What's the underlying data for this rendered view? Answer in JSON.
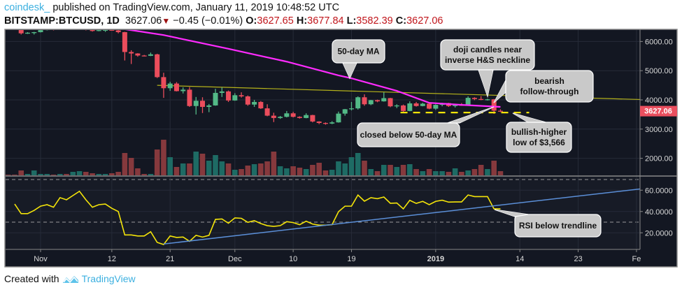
{
  "header": {
    "publisher": "coindesk_",
    "published_text": " published on TradingView.com, January 11, 2019 10:48:52 UTC",
    "symbol": "BITSTAMP:BTCUSD, 1D",
    "last": "3627.06",
    "change_icon": "triangle-down-icon",
    "change": "−0.45 (−0.01%)",
    "o_label": "O:",
    "o": "3627.65",
    "h_label": "H:",
    "h": "3677.84",
    "l_label": "L:",
    "l": "3582.39",
    "c_label": "C:",
    "c": "3627.06"
  },
  "colors": {
    "background": "#131722",
    "grid": "#262b38",
    "up": "#53b987",
    "down": "#eb4d5c",
    "vol_up": "#1e6b64",
    "vol_down": "#86393d",
    "ma": "#ff2bff",
    "neckline": "#b5b21a",
    "support": "#f4e409",
    "rsi": "#f4e409",
    "rsi_trend": "#5b8fd8",
    "price_tag": "#ea4f5f",
    "callout": "#c9c9c9",
    "brand": "#3cb0e0"
  },
  "price_axis": {
    "labels": [
      "6000.00",
      "5000.00",
      "4000.00",
      "3000.00",
      "2000.00"
    ],
    "values": [
      6000,
      5000,
      4000,
      3000,
      2000
    ],
    "last_price_tag": "3627.06",
    "last_price": 3627.06
  },
  "rsi_axis": {
    "labels": [
      "60.0000",
      "40.0000",
      "20.0000"
    ],
    "values": [
      60,
      40,
      20
    ],
    "bands": [
      70,
      30
    ]
  },
  "time_axis": [
    {
      "label": "Nov",
      "date": "2018-11-01"
    },
    {
      "label": "12",
      "date": "2018-11-12"
    },
    {
      "label": "21",
      "date": "2018-11-21"
    },
    {
      "label": "Dec",
      "date": "2018-12-01"
    },
    {
      "label": "10",
      "date": "2018-12-10"
    },
    {
      "label": "19",
      "date": "2018-12-19"
    },
    {
      "label": "2019",
      "date": "2019-01-01",
      "bold": true
    },
    {
      "label": "14",
      "date": "2019-01-14"
    },
    {
      "label": "23",
      "date": "2019-01-23"
    },
    {
      "label": "Fe",
      "date": "2019-02-01"
    }
  ],
  "chart_data": {
    "type": "candlestick",
    "symbol": "BITSTAMP:BTCUSD",
    "interval": "1D",
    "ylim": [
      1450,
      6370
    ],
    "candles_columns": [
      "date",
      "open",
      "high",
      "low",
      "close"
    ],
    "candles": [
      [
        "2018-10-27",
        6480,
        6490,
        6450,
        6470
      ],
      [
        "2018-10-28",
        6470,
        6480,
        6440,
        6460
      ],
      [
        "2018-10-29",
        6400,
        6420,
        6240,
        6280
      ],
      [
        "2018-10-30",
        6280,
        6320,
        6260,
        6300
      ],
      [
        "2018-10-31",
        6300,
        6330,
        6240,
        6320
      ],
      [
        "2018-11-01",
        6320,
        6400,
        6310,
        6390
      ],
      [
        "2018-11-02",
        6390,
        6470,
        6380,
        6440
      ],
      [
        "2018-11-03",
        6440,
        6450,
        6380,
        6410
      ],
      [
        "2018-11-04",
        6410,
        6480,
        6400,
        6460
      ],
      [
        "2018-11-05",
        6460,
        6480,
        6420,
        6430
      ],
      [
        "2018-11-06",
        6430,
        6500,
        6420,
        6470
      ],
      [
        "2018-11-07",
        6470,
        6560,
        6460,
        6530
      ],
      [
        "2018-11-08",
        6530,
        6540,
        6380,
        6400
      ],
      [
        "2018-11-09",
        6400,
        6430,
        6340,
        6360
      ],
      [
        "2018-11-10",
        6360,
        6400,
        6350,
        6390
      ],
      [
        "2018-11-11",
        6390,
        6420,
        6330,
        6400
      ],
      [
        "2018-11-12",
        6400,
        6440,
        6370,
        6380
      ],
      [
        "2018-11-13",
        6380,
        6400,
        6280,
        6320
      ],
      [
        "2018-11-14",
        6320,
        6330,
        5350,
        5640
      ],
      [
        "2018-11-15",
        5640,
        5700,
        5230,
        5590
      ],
      [
        "2018-11-16",
        5590,
        5600,
        5480,
        5520
      ],
      [
        "2018-11-17",
        5520,
        5540,
        5490,
        5510
      ],
      [
        "2018-11-18",
        5510,
        5620,
        5500,
        5560
      ],
      [
        "2018-11-19",
        5560,
        5580,
        4750,
        4780
      ],
      [
        "2018-11-20",
        4780,
        4930,
        4070,
        4400
      ],
      [
        "2018-11-21",
        4400,
        4620,
        4310,
        4560
      ],
      [
        "2018-11-22",
        4560,
        4610,
        4290,
        4300
      ],
      [
        "2018-11-23",
        4300,
        4430,
        4220,
        4350
      ],
      [
        "2018-11-24",
        4350,
        4440,
        3760,
        3790
      ],
      [
        "2018-11-25",
        3790,
        4100,
        3500,
        3970
      ],
      [
        "2018-11-26",
        3970,
        4090,
        3550,
        3760
      ],
      [
        "2018-11-27",
        3760,
        3860,
        3580,
        3810
      ],
      [
        "2018-11-28",
        3810,
        4380,
        3800,
        4240
      ],
      [
        "2018-11-29",
        4240,
        4430,
        4100,
        4290
      ],
      [
        "2018-11-30",
        4290,
        4320,
        3930,
        3980
      ],
      [
        "2018-12-01",
        3980,
        4230,
        3970,
        4160
      ],
      [
        "2018-12-02",
        4160,
        4260,
        4080,
        4120
      ],
      [
        "2018-12-03",
        4120,
        4150,
        3800,
        3840
      ],
      [
        "2018-12-04",
        3840,
        4000,
        3760,
        3930
      ],
      [
        "2018-12-05",
        3930,
        3960,
        3690,
        3710
      ],
      [
        "2018-12-06",
        3710,
        3850,
        3440,
        3460
      ],
      [
        "2018-12-07",
        3460,
        3560,
        3240,
        3380
      ],
      [
        "2018-12-08",
        3380,
        3450,
        3350,
        3420
      ],
      [
        "2018-12-09",
        3420,
        3620,
        3400,
        3540
      ],
      [
        "2018-12-10",
        3540,
        3590,
        3400,
        3420
      ],
      [
        "2018-12-11",
        3420,
        3440,
        3360,
        3380
      ],
      [
        "2018-12-12",
        3380,
        3540,
        3370,
        3480
      ],
      [
        "2018-12-13",
        3480,
        3490,
        3230,
        3260
      ],
      [
        "2018-12-14",
        3260,
        3270,
        3170,
        3210
      ],
      [
        "2018-12-15",
        3210,
        3230,
        3150,
        3190
      ],
      [
        "2018-12-16",
        3190,
        3270,
        3170,
        3230
      ],
      [
        "2018-12-17",
        3230,
        3600,
        3220,
        3530
      ],
      [
        "2018-12-18",
        3530,
        3690,
        3460,
        3680
      ],
      [
        "2018-12-19",
        3680,
        3930,
        3640,
        3710
      ],
      [
        "2018-12-20",
        3710,
        4120,
        3670,
        4090
      ],
      [
        "2018-12-21",
        4090,
        4190,
        3800,
        3850
      ],
      [
        "2018-12-22",
        3850,
        4000,
        3820,
        3990
      ],
      [
        "2018-12-23",
        3990,
        4010,
        3920,
        3950
      ],
      [
        "2018-12-24",
        3950,
        4260,
        3940,
        4060
      ],
      [
        "2018-12-25",
        4060,
        4070,
        3750,
        3780
      ],
      [
        "2018-12-26",
        3780,
        3850,
        3720,
        3810
      ],
      [
        "2018-12-27",
        3810,
        3840,
        3590,
        3620
      ],
      [
        "2018-12-28",
        3620,
        3950,
        3610,
        3880
      ],
      [
        "2018-12-29",
        3880,
        3930,
        3770,
        3790
      ],
      [
        "2018-12-30",
        3790,
        3900,
        3780,
        3870
      ],
      [
        "2018-12-31",
        3870,
        3880,
        3680,
        3700
      ],
      [
        "2019-01-01",
        3700,
        3850,
        3660,
        3830
      ],
      [
        "2019-01-02",
        3830,
        3900,
        3780,
        3890
      ],
      [
        "2019-01-03",
        3890,
        3900,
        3760,
        3790
      ],
      [
        "2019-01-04",
        3790,
        3850,
        3740,
        3830
      ],
      [
        "2019-01-05",
        3830,
        3890,
        3800,
        3820
      ],
      [
        "2019-01-06",
        3820,
        4120,
        3800,
        4070
      ],
      [
        "2019-01-07",
        4070,
        4090,
        3990,
        4030
      ],
      [
        "2019-01-08",
        4030,
        4130,
        3990,
        4010
      ],
      [
        "2019-01-09",
        4010,
        4040,
        3980,
        4020
      ],
      [
        "2019-01-10",
        4020,
        4030,
        3520,
        3630
      ],
      [
        "2019-01-11",
        3627.65,
        3677.84,
        3582.39,
        3627.06
      ]
    ],
    "volume_relative": [
      1,
      1,
      7,
      2,
      7,
      2,
      2,
      1,
      2,
      2,
      5,
      6,
      5,
      3,
      2,
      2,
      3,
      5,
      32,
      25,
      10,
      2,
      2,
      37,
      51,
      26,
      12,
      17,
      17,
      34,
      31,
      21,
      29,
      20,
      17,
      8,
      9,
      14,
      16,
      17,
      20,
      34,
      13,
      10,
      13,
      11,
      9,
      15,
      18,
      7,
      8,
      20,
      17,
      26,
      32,
      21,
      9,
      6,
      15,
      15,
      12,
      15,
      16,
      9,
      6,
      9,
      6,
      6,
      5,
      10,
      5,
      7,
      9,
      15,
      9,
      21,
      6
    ],
    "ma_50": {
      "label_callout": "50-day MA",
      "points": [
        [
          "2018-11-13",
          6450
        ],
        [
          "2018-11-15",
          6390
        ],
        [
          "2018-11-20",
          6220
        ],
        [
          "2018-11-30",
          5750
        ],
        [
          "2018-12-09",
          5310
        ],
        [
          "2018-12-17",
          4840
        ],
        [
          "2018-12-19",
          4740
        ],
        [
          "2018-12-26",
          4310
        ],
        [
          "2018-12-31",
          3900
        ],
        [
          "2019-01-05",
          3830
        ],
        [
          "2019-01-11",
          3760
        ]
      ]
    },
    "neckline": [
      [
        "2018-11-19",
        4500
      ],
      [
        "2019-02-02",
        4010
      ]
    ],
    "support_level": {
      "value": 3566,
      "from": "2018-12-27",
      "to": "2019-01-15"
    },
    "rsi": {
      "start": "2018-10-28",
      "values": [
        47,
        38,
        38,
        41,
        45,
        46.4,
        44,
        53,
        51,
        55,
        59,
        51,
        44,
        46.4,
        47,
        43,
        40,
        18,
        18,
        17,
        17,
        21,
        11,
        9,
        17,
        15.6,
        16,
        12,
        17.6,
        16,
        17.6,
        32.6,
        33,
        29,
        34,
        33.6,
        29.8,
        31.4,
        28.7,
        26.7,
        26,
        26.7,
        30.4,
        29.6,
        27.6,
        30.9,
        28.2,
        27.2,
        27.2,
        27.6,
        39.8,
        45,
        45,
        55.5,
        49.7,
        53,
        52,
        53.6,
        47.7,
        48,
        42.5,
        50.5,
        47.6,
        49.5,
        46.4,
        49.5,
        50.6,
        48.8,
        49,
        49,
        55.5,
        54,
        54,
        54,
        42.5,
        42.5
      ],
      "trendline": [
        [
          "2018-11-20",
          9.5
        ],
        [
          "2019-02-02",
          61.5
        ]
      ],
      "ylim": [
        0,
        80
      ]
    },
    "annotations": [
      {
        "id": "ma",
        "lines": [
          "50-day MA"
        ]
      },
      {
        "id": "doji",
        "lines": [
          "doji candles near",
          "inverse H&S neckline"
        ]
      },
      {
        "id": "bearish",
        "lines": [
          "bearish",
          "follow-through"
        ]
      },
      {
        "id": "closed",
        "lines": [
          "closed below 50-day MA"
        ]
      },
      {
        "id": "higherlow",
        "lines": [
          "bullish-higher",
          "low of $3,566"
        ]
      },
      {
        "id": "rsi",
        "lines": [
          "RSI below trendline"
        ]
      }
    ]
  },
  "footer": {
    "created_with": "Created with",
    "brand": "TradingView",
    "logo_icon": "tradingview-cloud-icon"
  }
}
